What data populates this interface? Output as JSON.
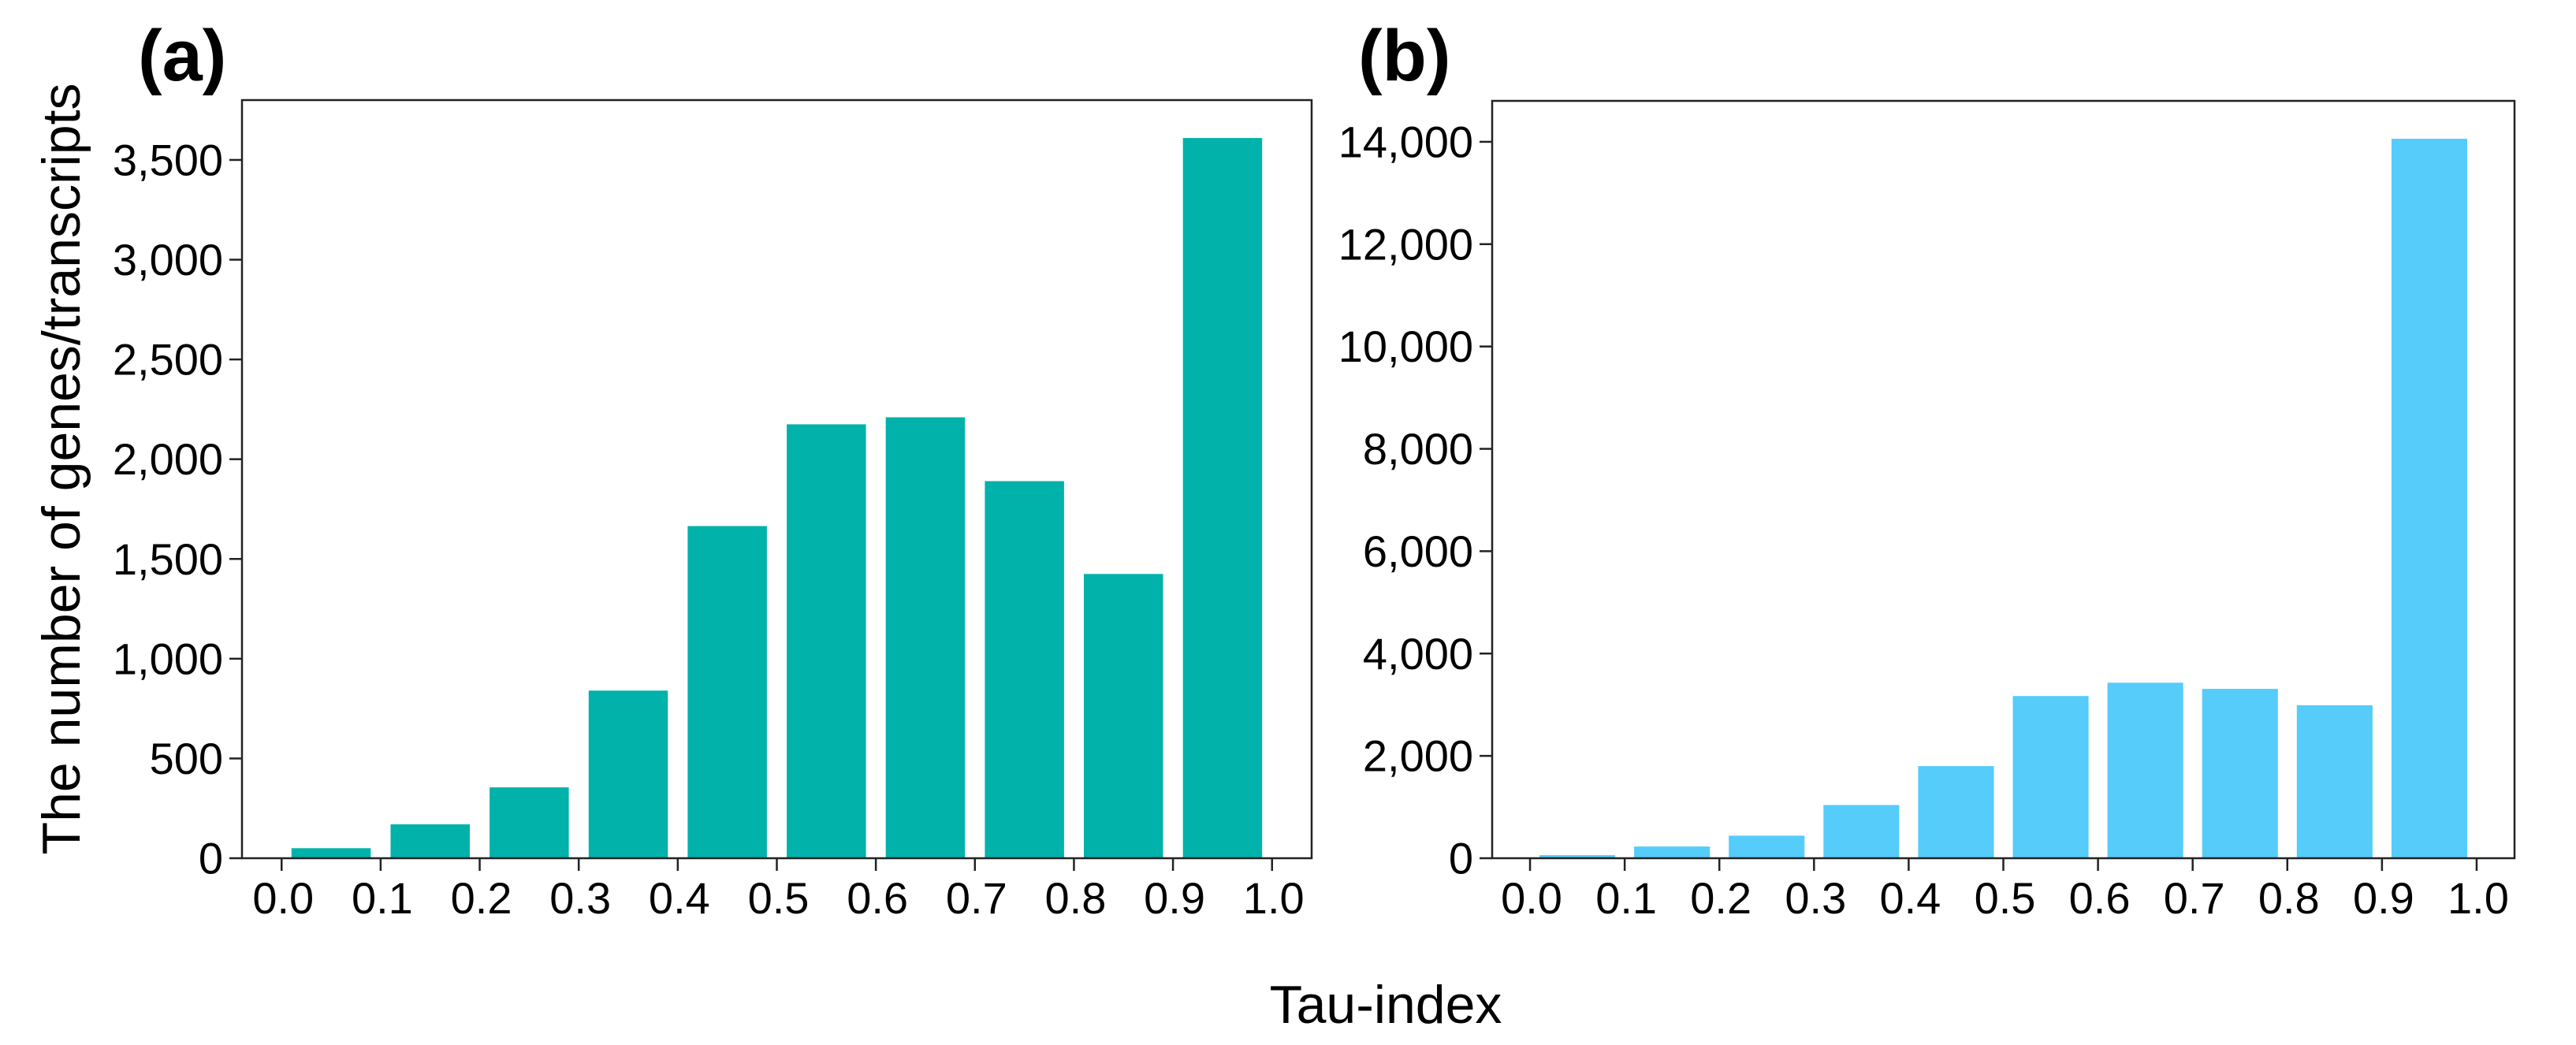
{
  "figure": {
    "ylabel": "The number of genes/transcripts",
    "xlabel": "Tau-index"
  },
  "chart_data": [
    {
      "type": "bar",
      "panel_label": "(a)",
      "color": "#00b2aa",
      "x_ticks": [
        "0.0",
        "0.1",
        "0.2",
        "0.3",
        "0.4",
        "0.5",
        "0.6",
        "0.7",
        "0.8",
        "0.9",
        "1.0"
      ],
      "bin_edges": [
        0.0,
        0.1,
        0.2,
        0.3,
        0.4,
        0.5,
        0.6,
        0.7,
        0.8,
        0.9,
        1.0
      ],
      "values": [
        50,
        170,
        355,
        840,
        1665,
        2175,
        2210,
        1890,
        1425,
        3610
      ],
      "y_ticks": [
        0,
        500,
        1000,
        1500,
        2000,
        2500,
        3000,
        3500
      ],
      "y_tick_labels": [
        "0",
        "500",
        "1,000",
        "1,500",
        "2,000",
        "2,500",
        "3,000",
        "3,500"
      ],
      "ylim": [
        0,
        3800
      ],
      "xlim": [
        -0.04,
        1.04
      ]
    },
    {
      "type": "bar",
      "panel_label": "(b)",
      "color": "#55ccfa",
      "x_ticks": [
        "0.0",
        "0.1",
        "0.2",
        "0.3",
        "0.4",
        "0.5",
        "0.6",
        "0.7",
        "0.8",
        "0.9",
        "1.0"
      ],
      "bin_edges": [
        0.0,
        0.1,
        0.2,
        0.3,
        0.4,
        0.5,
        0.6,
        0.7,
        0.8,
        0.9,
        1.0
      ],
      "values": [
        60,
        230,
        440,
        1040,
        1800,
        3170,
        3430,
        3310,
        2990,
        14060
      ],
      "y_ticks": [
        0,
        2000,
        4000,
        6000,
        8000,
        10000,
        12000,
        14000
      ],
      "y_tick_labels": [
        "0",
        "2,000",
        "4,000",
        "6,000",
        "8,000",
        "10,000",
        "12,000",
        "14,000"
      ],
      "ylim": [
        0,
        14800
      ],
      "xlim": [
        -0.04,
        1.04
      ]
    }
  ]
}
